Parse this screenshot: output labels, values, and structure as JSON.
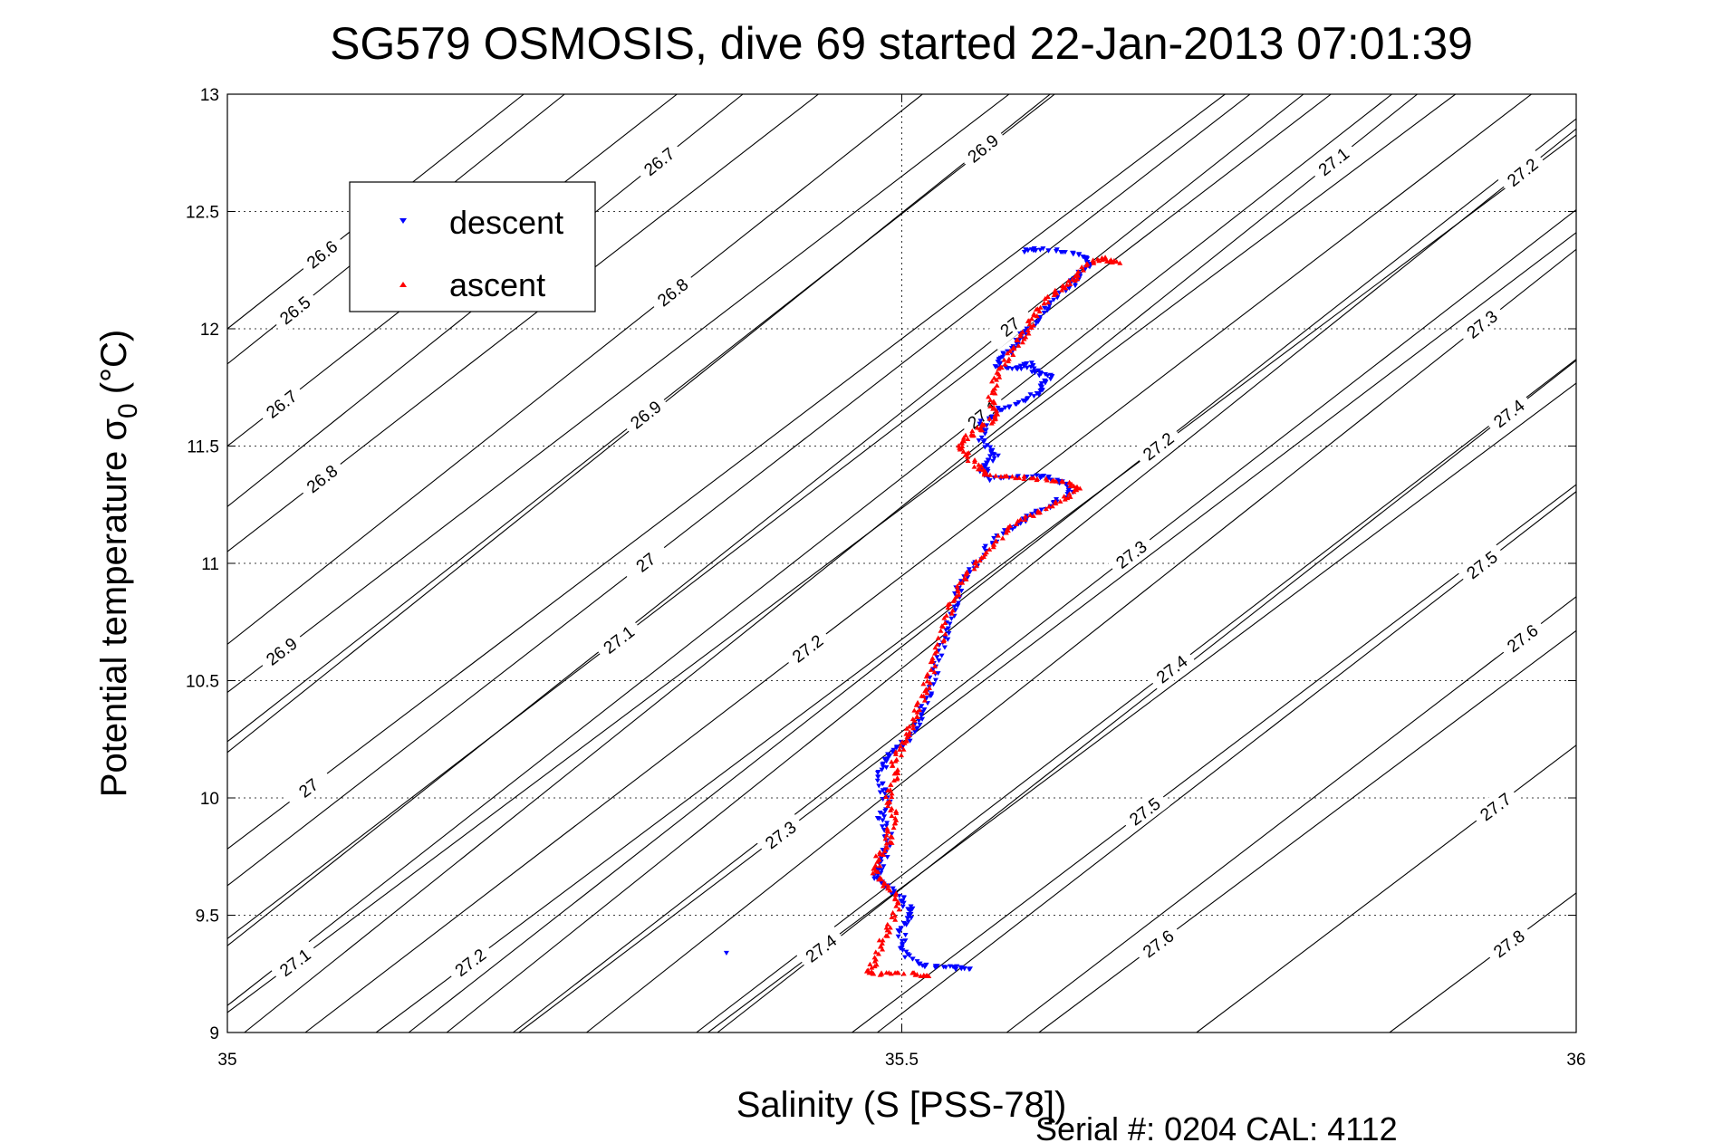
{
  "chart_data": {
    "type": "scatter",
    "title": "SG579 OSMOSIS, dive 69 started 22-Jan-2013 07:01:39",
    "xlabel": "Salinity (S [PSS-78])",
    "ylabel_main": "Potential temperature σ",
    "ylabel_sub": "0",
    "ylabel_unit": "(°C)",
    "xlim": [
      35,
      36
    ],
    "ylim": [
      9,
      13
    ],
    "x_ticks": [
      35,
      35.5,
      36
    ],
    "x_tick_labels": [
      "35",
      "35.5",
      "36"
    ],
    "y_ticks": [
      9,
      9.5,
      10,
      10.5,
      11,
      11.5,
      12,
      12.5,
      13
    ],
    "y_tick_labels": [
      "9",
      "9.5",
      "10",
      "10.5",
      "11",
      "11.5",
      "12",
      "12.5",
      "13"
    ],
    "grid": true,
    "legend_position": "top-left",
    "footer": "Serial #: 0204  CAL: 4112",
    "isopycnals": {
      "line_color": "#000000",
      "lines": [
        {
          "s0": 35.0,
          "t0": 11.85,
          "slope": 4.6,
          "labels": [
            {
              "text": "26.5",
              "x": 35.05
            }
          ]
        },
        {
          "s0": 35.28,
          "t0": 12.53,
          "slope": 4.6,
          "labels": [
            {
              "text": "26.7",
              "x": 35.32
            }
          ]
        },
        {
          "s0": 35.51,
          "t0": 12.54,
          "slope": 4.6,
          "labels": [
            {
              "text": "26.9",
              "x": 35.56
            }
          ]
        },
        {
          "s0": 35.78,
          "t0": 12.53,
          "slope": 4.6,
          "labels": [
            {
              "text": "27.1",
              "x": 35.82
            }
          ]
        },
        {
          "s0": 35.93,
          "t0": 12.53,
          "slope": 4.6,
          "labels": [
            {
              "text": "27.2",
              "x": 35.96
            }
          ]
        },
        {
          "s0": 35.0,
          "t0": 12.0,
          "slope": 4.55,
          "labels": [
            {
              "text": "26.6",
              "x": 35.07
            }
          ]
        },
        {
          "s0": 35.3,
          "t0": 12.02,
          "slope": 4.55,
          "labels": [
            {
              "text": "26.8",
              "x": 35.33
            }
          ]
        },
        {
          "s0": 35.6,
          "t0": 12.1,
          "slope": 4.55,
          "labels": [
            {
              "text": "27",
              "x": 35.58
            }
          ]
        },
        {
          "s0": 35.93,
          "t0": 12.02,
          "slope": 4.55,
          "labels": [
            {
              "text": "27.3",
              "x": 35.93
            }
          ]
        },
        {
          "s0": 35.0,
          "t0": 11.5,
          "slope": 4.5,
          "labels": [
            {
              "text": "26.7",
              "x": 35.04
            }
          ]
        },
        {
          "s0": 35.28,
          "t0": 11.5,
          "slope": 4.5,
          "labels": [
            {
              "text": "26.9",
              "x": 35.31
            }
          ]
        },
        {
          "s0": 35.53,
          "t0": 11.5,
          "slope": 4.5,
          "labels": [
            {
              "text": "27.1",
              "x": 35.56
            }
          ]
        },
        {
          "s0": 35.69,
          "t0": 11.5,
          "slope": 4.5,
          "labels": [
            {
              "text": "27.2",
              "x": 35.69
            }
          ]
        },
        {
          "s0": 35.93,
          "t0": 11.55,
          "slope": 4.5,
          "labels": [
            {
              "text": "27.4",
              "x": 35.95
            }
          ]
        },
        {
          "s0": 35.0,
          "t0": 11.05,
          "slope": 4.45,
          "labels": [
            {
              "text": "26.8",
              "x": 35.07
            }
          ]
        },
        {
          "s0": 35.32,
          "t0": 11.05,
          "slope": 4.45,
          "labels": [
            {
              "text": "27",
              "x": 35.31
            }
          ]
        },
        {
          "s0": 35.65,
          "t0": 10.95,
          "slope": 4.45,
          "labels": [
            {
              "text": "27.3",
              "x": 35.67
            }
          ]
        },
        {
          "s0": 35.92,
          "t0": 10.95,
          "slope": 4.45,
          "labels": [
            {
              "text": "27.5",
              "x": 35.93
            }
          ]
        },
        {
          "s0": 35.0,
          "t0": 10.45,
          "slope": 4.4,
          "labels": [
            {
              "text": "26.9",
              "x": 35.04
            }
          ]
        },
        {
          "s0": 35.25,
          "t0": 10.5,
          "slope": 4.4,
          "labels": [
            {
              "text": "27.1",
              "x": 35.29
            }
          ]
        },
        {
          "s0": 35.41,
          "t0": 10.55,
          "slope": 4.4,
          "labels": [
            {
              "text": "27.2",
              "x": 35.43
            }
          ]
        },
        {
          "s0": 35.7,
          "t0": 10.55,
          "slope": 4.4,
          "labels": [
            {
              "text": "27.4",
              "x": 35.7
            }
          ]
        },
        {
          "s0": 35.93,
          "t0": 10.55,
          "slope": 4.4,
          "labels": [
            {
              "text": "27.6",
              "x": 35.96
            }
          ]
        },
        {
          "s0": 35.05,
          "t0": 10.0,
          "slope": 4.35,
          "labels": [
            {
              "text": "27",
              "x": 35.06
            }
          ]
        },
        {
          "s0": 35.4,
          "t0": 9.8,
          "slope": 4.35,
          "labels": [
            {
              "text": "27.3",
              "x": 35.41
            }
          ]
        },
        {
          "s0": 35.67,
          "t0": 9.9,
          "slope": 4.35,
          "labels": [
            {
              "text": "27.5",
              "x": 35.68
            }
          ]
        },
        {
          "s0": 35.93,
          "t0": 9.92,
          "slope": 4.35,
          "labels": [
            {
              "text": "27.7",
              "x": 35.94
            }
          ]
        },
        {
          "s0": 35.05,
          "t0": 9.3,
          "slope": 4.3,
          "labels": [
            {
              "text": "27.1",
              "x": 35.05
            }
          ]
        },
        {
          "s0": 35.18,
          "t0": 9.3,
          "slope": 4.3,
          "labels": [
            {
              "text": "27.2",
              "x": 35.18
            }
          ]
        },
        {
          "s0": 35.44,
          "t0": 9.36,
          "slope": 4.3,
          "labels": [
            {
              "text": "27.4",
              "x": 35.44
            }
          ]
        },
        {
          "s0": 35.69,
          "t0": 9.38,
          "slope": 4.3,
          "labels": [
            {
              "text": "27.6",
              "x": 35.69
            }
          ]
        },
        {
          "s0": 35.95,
          "t0": 9.38,
          "slope": 4.3,
          "labels": [
            {
              "text": "27.8",
              "x": 35.95
            }
          ]
        }
      ]
    },
    "series": [
      {
        "name": "descent",
        "color": "#0000ff",
        "marker": "triangle-down",
        "profile": [
          [
            35.59,
            12.33
          ],
          [
            35.6,
            12.34
          ],
          [
            35.62,
            12.33
          ],
          [
            35.635,
            12.31
          ],
          [
            35.64,
            12.28
          ],
          [
            35.63,
            12.22
          ],
          [
            35.625,
            12.18
          ],
          [
            35.61,
            12.1
          ],
          [
            35.6,
            12.03
          ],
          [
            35.59,
            11.98
          ],
          [
            35.585,
            11.93
          ],
          [
            35.575,
            11.88
          ],
          [
            35.57,
            11.84
          ],
          [
            35.585,
            11.83
          ],
          [
            35.595,
            11.85
          ],
          [
            35.6,
            11.81
          ],
          [
            35.61,
            11.8
          ],
          [
            35.605,
            11.76
          ],
          [
            35.6,
            11.72
          ],
          [
            35.585,
            11.68
          ],
          [
            35.57,
            11.65
          ],
          [
            35.56,
            11.6
          ],
          [
            35.56,
            11.52
          ],
          [
            35.57,
            11.47
          ],
          [
            35.565,
            11.43
          ],
          [
            35.56,
            11.4
          ],
          [
            35.565,
            11.36
          ],
          [
            35.59,
            11.37
          ],
          [
            35.61,
            11.37
          ],
          [
            35.62,
            11.34
          ],
          [
            35.625,
            11.3
          ],
          [
            35.61,
            11.25
          ],
          [
            35.595,
            11.2
          ],
          [
            35.58,
            11.15
          ],
          [
            35.565,
            11.08
          ],
          [
            35.555,
            11.0
          ],
          [
            35.545,
            10.93
          ],
          [
            35.54,
            10.85
          ],
          [
            35.535,
            10.75
          ],
          [
            35.53,
            10.65
          ],
          [
            35.525,
            10.55
          ],
          [
            35.52,
            10.45
          ],
          [
            35.515,
            10.38
          ],
          [
            35.51,
            10.3
          ],
          [
            35.5,
            10.22
          ],
          [
            35.49,
            10.18
          ],
          [
            35.485,
            10.12
          ],
          [
            35.485,
            10.05
          ],
          [
            35.49,
            9.98
          ],
          [
            35.485,
            9.92
          ],
          [
            35.49,
            9.85
          ],
          [
            35.488,
            9.78
          ],
          [
            35.485,
            9.72
          ],
          [
            35.48,
            9.66
          ],
          [
            35.49,
            9.62
          ],
          [
            35.5,
            9.58
          ],
          [
            35.505,
            9.53
          ],
          [
            35.505,
            9.5
          ],
          [
            35.5,
            9.45
          ],
          [
            35.5,
            9.38
          ],
          [
            35.505,
            9.32
          ],
          [
            35.52,
            9.28
          ],
          [
            35.54,
            9.28
          ],
          [
            35.55,
            9.27
          ]
        ],
        "outliers": [
          [
            35.37,
            9.34
          ],
          [
            35.54,
            9.27
          ]
        ]
      },
      {
        "name": "ascent",
        "color": "#ff0000",
        "marker": "triangle-up",
        "profile": [
          [
            35.66,
            12.28
          ],
          [
            35.65,
            12.3
          ],
          [
            35.64,
            12.28
          ],
          [
            35.63,
            12.22
          ],
          [
            35.62,
            12.18
          ],
          [
            35.61,
            12.14
          ],
          [
            35.6,
            12.08
          ],
          [
            35.595,
            12.02
          ],
          [
            35.59,
            11.97
          ],
          [
            35.585,
            11.92
          ],
          [
            35.575,
            11.85
          ],
          [
            35.57,
            11.78
          ],
          [
            35.565,
            11.7
          ],
          [
            35.57,
            11.64
          ],
          [
            35.565,
            11.6
          ],
          [
            35.555,
            11.56
          ],
          [
            35.545,
            11.52
          ],
          [
            35.545,
            11.48
          ],
          [
            35.555,
            11.42
          ],
          [
            35.56,
            11.38
          ],
          [
            35.58,
            11.37
          ],
          [
            35.6,
            11.36
          ],
          [
            35.62,
            11.35
          ],
          [
            35.63,
            11.32
          ],
          [
            35.62,
            11.27
          ],
          [
            35.6,
            11.22
          ],
          [
            35.585,
            11.17
          ],
          [
            35.57,
            11.1
          ],
          [
            35.56,
            11.03
          ],
          [
            35.55,
            10.96
          ],
          [
            35.54,
            10.88
          ],
          [
            35.535,
            10.8
          ],
          [
            35.53,
            10.7
          ],
          [
            35.525,
            10.6
          ],
          [
            35.52,
            10.5
          ],
          [
            35.515,
            10.43
          ],
          [
            35.51,
            10.35
          ],
          [
            35.505,
            10.28
          ],
          [
            35.5,
            10.22
          ],
          [
            35.495,
            10.15
          ],
          [
            35.495,
            10.08
          ],
          [
            35.49,
            10.0
          ],
          [
            35.495,
            9.93
          ],
          [
            35.49,
            9.86
          ],
          [
            35.49,
            9.8
          ],
          [
            35.482,
            9.74
          ],
          [
            35.48,
            9.68
          ],
          [
            35.49,
            9.62
          ],
          [
            35.5,
            9.55
          ],
          [
            35.49,
            9.45
          ],
          [
            35.485,
            9.38
          ],
          [
            35.48,
            9.3
          ],
          [
            35.475,
            9.25
          ],
          [
            35.49,
            9.25
          ],
          [
            35.51,
            9.25
          ],
          [
            35.52,
            9.24
          ]
        ],
        "outliers": []
      }
    ]
  }
}
